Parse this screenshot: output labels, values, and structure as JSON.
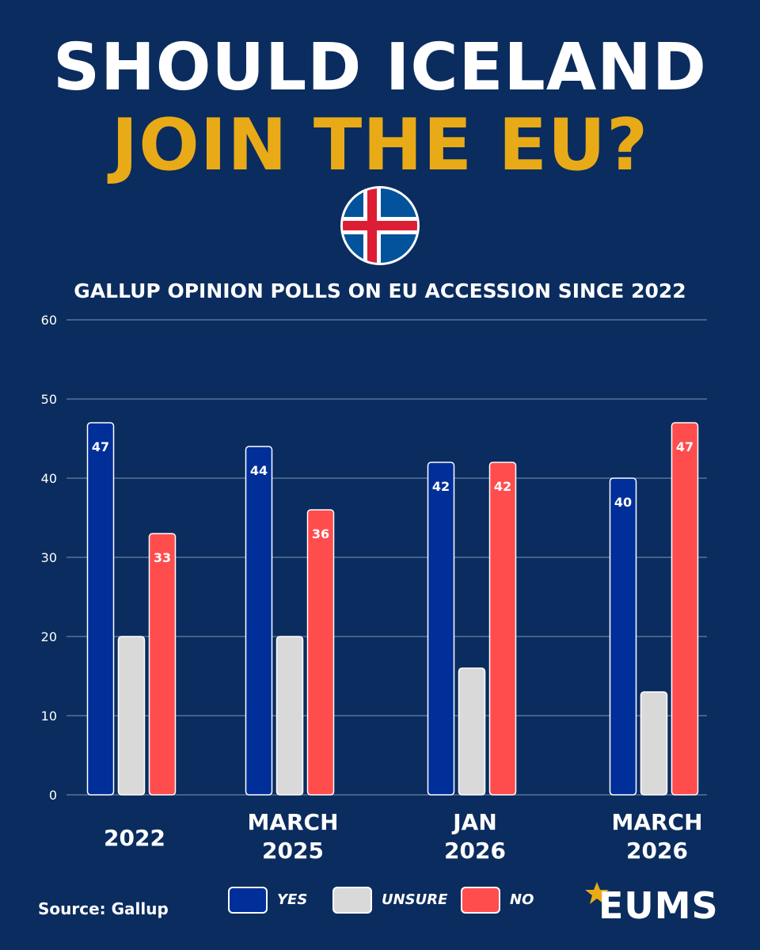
{
  "header": {
    "title_line1": "SHOULD ICELAND",
    "title_line2": "JOIN THE EU?",
    "flag_icon": "iceland-flag-icon"
  },
  "colors": {
    "background": "#0b2c5e",
    "accent": "#e8ab17",
    "yes": "#002f99",
    "unsure": "#d9d9d9",
    "no": "#ff4d4d"
  },
  "chart_data": {
    "type": "bar",
    "title": "GALLUP OPINION POLLS ON EU ACCESSION SINCE 2022",
    "xlabel": "",
    "ylabel": "",
    "ylim": [
      0,
      60
    ],
    "yticks": [
      0,
      10,
      20,
      30,
      40,
      50,
      60
    ],
    "grid": true,
    "categories": [
      "2022",
      "MARCH 2025",
      "JAN 2026",
      "MARCH 2026"
    ],
    "category_lines": [
      [
        "2022"
      ],
      [
        "MARCH",
        "2025"
      ],
      [
        "JAN",
        "2026"
      ],
      [
        "MARCH",
        "2026"
      ]
    ],
    "series": [
      {
        "name": "YES",
        "values": [
          47,
          44,
          42,
          40
        ],
        "labeled": true
      },
      {
        "name": "UNSURE",
        "values": [
          20,
          20,
          16,
          13
        ],
        "labeled": false
      },
      {
        "name": "NO",
        "values": [
          33,
          36,
          42,
          47
        ],
        "labeled": true
      }
    ],
    "data_labels": {
      "YES": [
        "47",
        "44",
        "42",
        "40"
      ],
      "NO": [
        "33",
        "36",
        "42",
        "47"
      ]
    },
    "legend": {
      "placement": "bottom",
      "entries": [
        "YES",
        "UNSURE",
        "NO"
      ]
    }
  },
  "footer": {
    "source": "Source: Gallup",
    "logo_text": "EUMS",
    "logo_icon": "star-icon"
  }
}
